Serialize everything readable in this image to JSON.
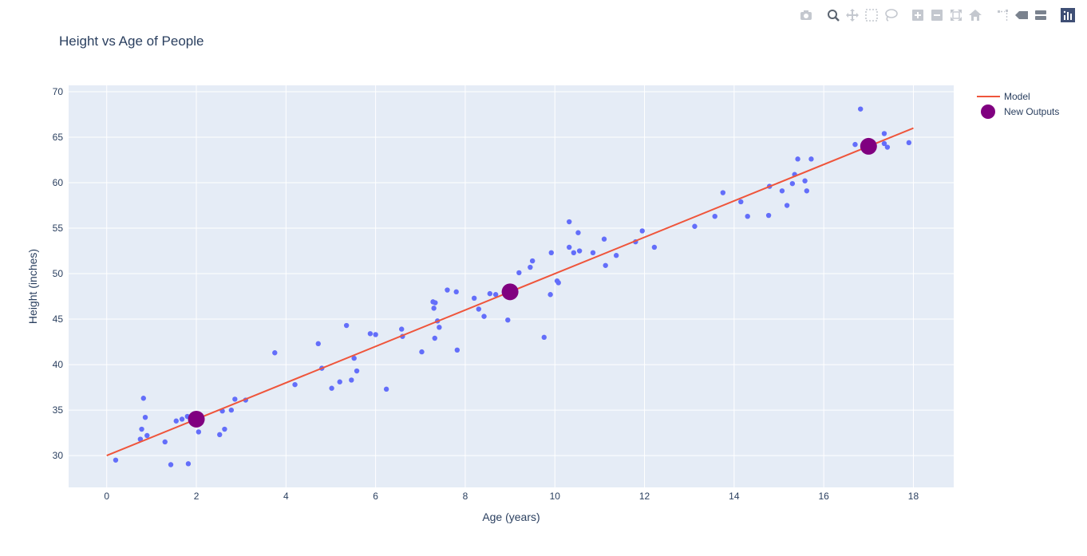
{
  "modebar": {
    "buttons": [
      {
        "name": "camera-icon",
        "group": 0,
        "active": false
      },
      {
        "name": "zoom-icon",
        "group": 1,
        "active": true
      },
      {
        "name": "pan-icon",
        "group": 1,
        "active": false
      },
      {
        "name": "box-select-icon",
        "group": 1,
        "active": false
      },
      {
        "name": "lasso-select-icon",
        "group": 1,
        "active": false
      },
      {
        "name": "zoom-in-icon",
        "group": 2,
        "active": false
      },
      {
        "name": "zoom-out-icon",
        "group": 2,
        "active": false
      },
      {
        "name": "autoscale-icon",
        "group": 2,
        "active": false
      },
      {
        "name": "reset-axes-icon",
        "group": 2,
        "active": false
      },
      {
        "name": "spike-lines-icon",
        "group": 3,
        "active": false
      },
      {
        "name": "hover-closest-icon",
        "group": 3,
        "active": false
      },
      {
        "name": "hover-compare-icon",
        "group": 3,
        "active": false
      },
      {
        "name": "plotly-logo-icon",
        "group": 4,
        "active": false
      }
    ]
  },
  "chart_data": {
    "type": "scatter",
    "title": "Height vs Age of People",
    "xlabel": "Age (years)",
    "ylabel": "Height (inches)",
    "xlim": [
      -0.85,
      18.9
    ],
    "ylim": [
      26.5,
      70.7
    ],
    "xticks": [
      0,
      2,
      4,
      6,
      8,
      10,
      12,
      14,
      16,
      18
    ],
    "yticks": [
      30,
      35,
      40,
      45,
      50,
      55,
      60,
      65,
      70
    ],
    "grid": true,
    "legend_position": "top-right",
    "colors": {
      "plot_background": "#e5ecf6",
      "grid": "#ffffff",
      "data_points": "#636efa",
      "model_line": "#ef553b",
      "new_outputs": "#800080",
      "text": "#2a3f5f"
    },
    "series": [
      {
        "type": "scatter",
        "role": "data",
        "points": [
          [
            0.2,
            29.5
          ],
          [
            0.75,
            31.8
          ],
          [
            0.78,
            32.9
          ],
          [
            0.82,
            36.3
          ],
          [
            0.86,
            34.2
          ],
          [
            0.9,
            32.2
          ],
          [
            1.3,
            31.5
          ],
          [
            1.43,
            29.0
          ],
          [
            1.55,
            33.8
          ],
          [
            1.68,
            34.0
          ],
          [
            1.8,
            34.3
          ],
          [
            1.82,
            29.1
          ],
          [
            2.05,
            32.6
          ],
          [
            2.52,
            32.3
          ],
          [
            2.58,
            34.9
          ],
          [
            2.63,
            32.9
          ],
          [
            2.78,
            35.0
          ],
          [
            2.86,
            36.2
          ],
          [
            3.1,
            36.1
          ],
          [
            3.75,
            41.3
          ],
          [
            4.2,
            37.8
          ],
          [
            4.72,
            42.3
          ],
          [
            4.8,
            39.6
          ],
          [
            5.02,
            37.4
          ],
          [
            5.2,
            38.1
          ],
          [
            5.35,
            44.3
          ],
          [
            5.46,
            38.3
          ],
          [
            5.52,
            40.7
          ],
          [
            5.58,
            39.3
          ],
          [
            5.88,
            43.4
          ],
          [
            6.0,
            43.3
          ],
          [
            6.24,
            37.3
          ],
          [
            6.58,
            43.9
          ],
          [
            6.6,
            43.1
          ],
          [
            7.03,
            41.4
          ],
          [
            7.28,
            46.9
          ],
          [
            7.3,
            46.2
          ],
          [
            7.32,
            42.9
          ],
          [
            7.33,
            46.8
          ],
          [
            7.38,
            44.8
          ],
          [
            7.42,
            44.1
          ],
          [
            7.6,
            48.2
          ],
          [
            7.8,
            48.0
          ],
          [
            7.82,
            41.6
          ],
          [
            8.2,
            47.3
          ],
          [
            8.3,
            46.1
          ],
          [
            8.42,
            45.3
          ],
          [
            8.55,
            47.8
          ],
          [
            8.68,
            47.7
          ],
          [
            8.95,
            44.9
          ],
          [
            9.2,
            50.1
          ],
          [
            9.45,
            50.7
          ],
          [
            9.5,
            51.4
          ],
          [
            9.76,
            43.0
          ],
          [
            9.9,
            47.7
          ],
          [
            9.92,
            52.3
          ],
          [
            10.05,
            49.2
          ],
          [
            10.08,
            49.0
          ],
          [
            10.32,
            55.7
          ],
          [
            10.32,
            52.9
          ],
          [
            10.42,
            52.3
          ],
          [
            10.52,
            54.5
          ],
          [
            10.55,
            52.5
          ],
          [
            10.85,
            52.3
          ],
          [
            11.1,
            53.8
          ],
          [
            11.13,
            50.9
          ],
          [
            11.37,
            52.0
          ],
          [
            11.8,
            53.5
          ],
          [
            11.95,
            54.7
          ],
          [
            12.22,
            52.9
          ],
          [
            13.12,
            55.2
          ],
          [
            13.57,
            56.3
          ],
          [
            13.75,
            58.9
          ],
          [
            14.15,
            57.9
          ],
          [
            14.3,
            56.3
          ],
          [
            14.77,
            56.4
          ],
          [
            14.79,
            59.6
          ],
          [
            15.07,
            59.1
          ],
          [
            15.18,
            57.5
          ],
          [
            15.3,
            59.9
          ],
          [
            15.35,
            60.9
          ],
          [
            15.42,
            62.6
          ],
          [
            15.58,
            60.2
          ],
          [
            15.62,
            59.1
          ],
          [
            15.72,
            62.6
          ],
          [
            16.7,
            64.2
          ],
          [
            16.82,
            68.1
          ],
          [
            16.98,
            64.2
          ],
          [
            17.1,
            63.7
          ],
          [
            17.35,
            65.4
          ],
          [
            17.35,
            64.3
          ],
          [
            17.42,
            63.9
          ],
          [
            17.9,
            64.4
          ]
        ]
      },
      {
        "type": "line",
        "role": "model",
        "name": "Model",
        "x": [
          0,
          18
        ],
        "y": [
          30,
          66
        ]
      },
      {
        "type": "scatter",
        "role": "new-outputs",
        "name": "New Outputs",
        "x": [
          2,
          9,
          17
        ],
        "y": [
          34,
          48,
          64
        ]
      }
    ]
  }
}
